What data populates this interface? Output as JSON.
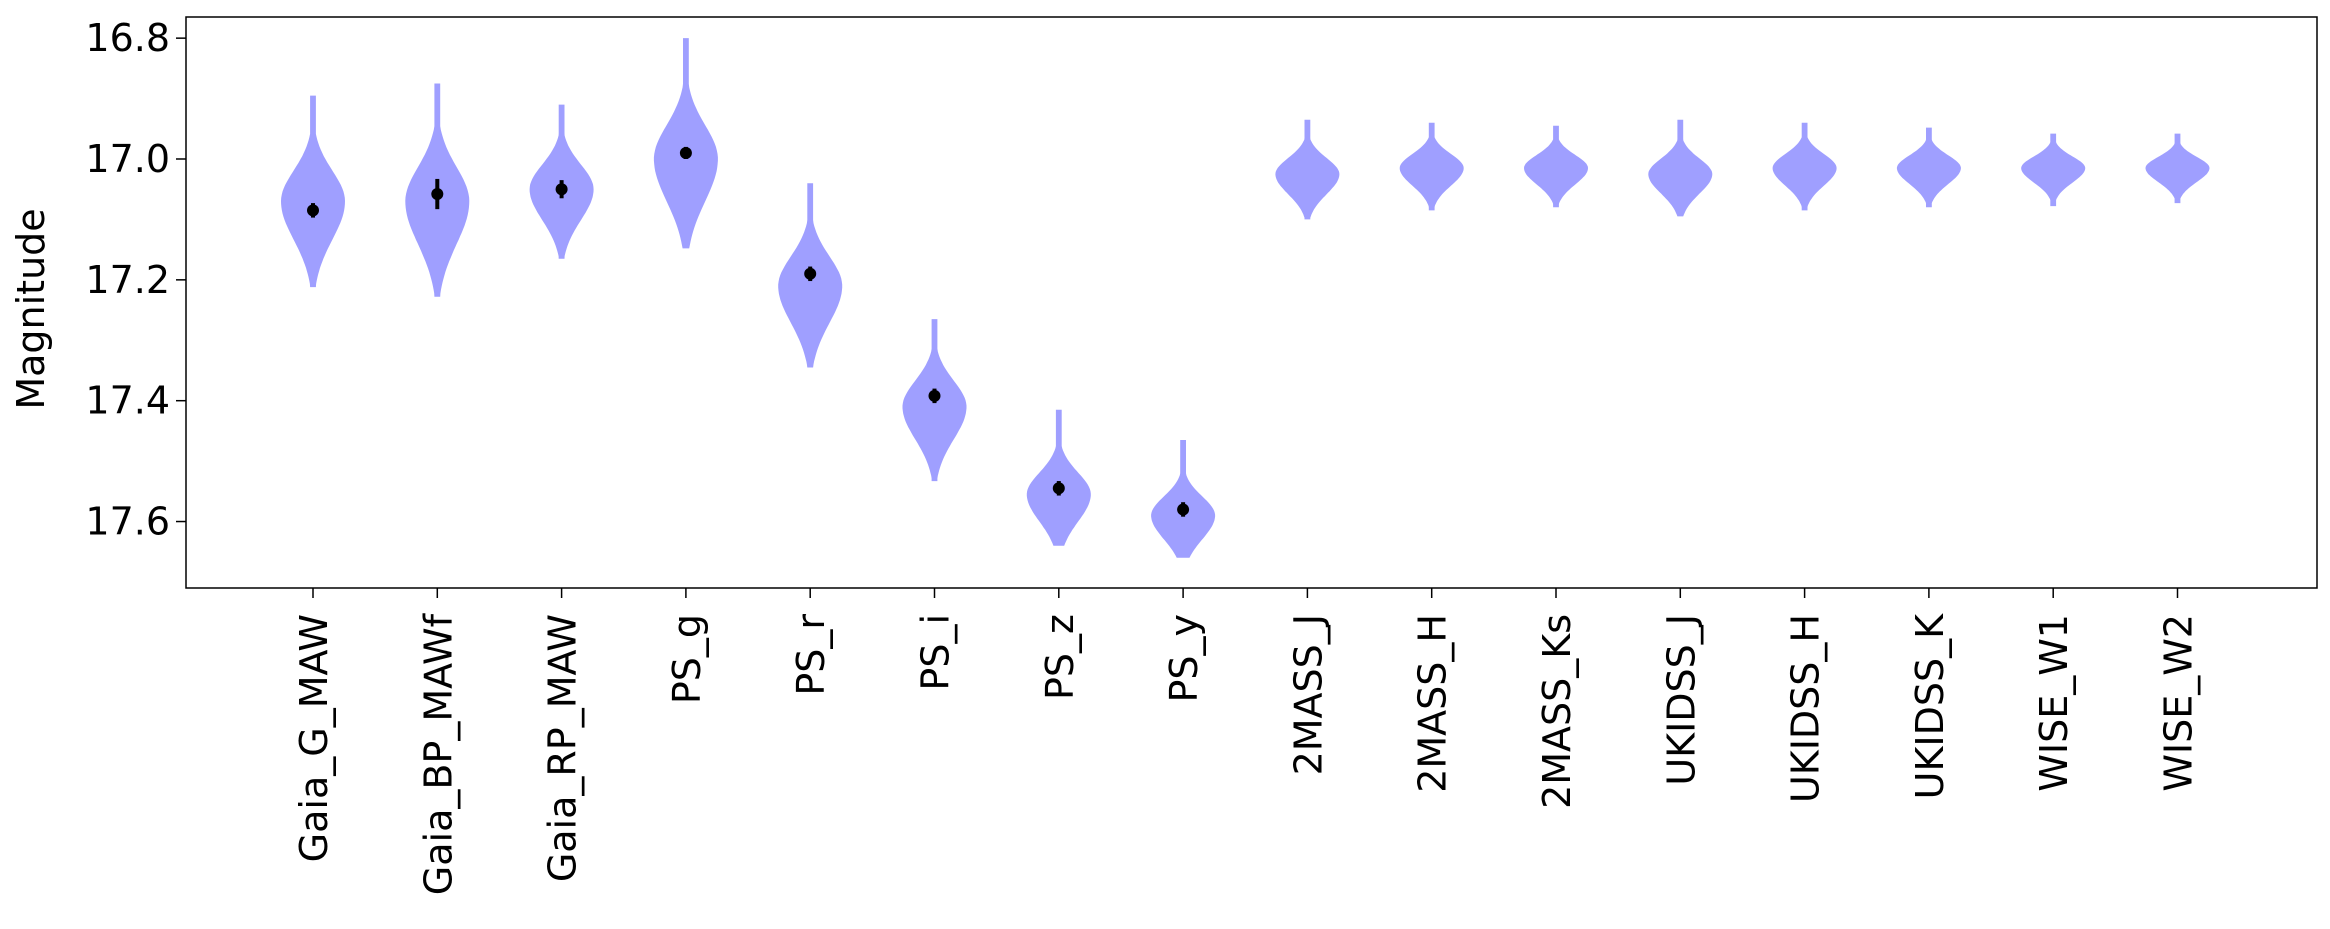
{
  "chart_data": {
    "type": "violin",
    "ylabel": "Magnitude",
    "xlabel": "",
    "title": "",
    "y_inverted": true,
    "ylim": [
      17.71,
      16.765
    ],
    "yticks": [
      16.8,
      17.0,
      17.2,
      17.4,
      17.6
    ],
    "ytick_labels": [
      "16.8",
      "17.0",
      "17.2",
      "17.4",
      "17.6"
    ],
    "grid": false,
    "violin_color": "#7f7fff",
    "categories": [
      "Gaia_G_MAW",
      "Gaia_BP_MAWf",
      "Gaia_RP_MAW",
      "PS_g",
      "PS_r",
      "PS_i",
      "PS_z",
      "PS_y",
      "2MASS_J",
      "2MASS_H",
      "2MASS_Ks",
      "UKIDSS_J",
      "UKIDSS_H",
      "UKIDSS_K",
      "WISE_W1",
      "WISE_W2"
    ],
    "violins": [
      {
        "band": "Gaia_G_MAW",
        "min": 16.895,
        "max": 17.212,
        "mode": 17.07,
        "halfwidth": 0.16
      },
      {
        "band": "Gaia_BP_MAWf",
        "min": 16.875,
        "max": 17.228,
        "mode": 17.07,
        "halfwidth": 0.16
      },
      {
        "band": "Gaia_RP_MAW",
        "min": 16.91,
        "max": 17.165,
        "mode": 17.05,
        "halfwidth": 0.16
      },
      {
        "band": "PS_g",
        "min": 16.8,
        "max": 17.148,
        "mode": 17.0,
        "halfwidth": 0.16
      },
      {
        "band": "PS_r",
        "min": 17.04,
        "max": 17.345,
        "mode": 17.21,
        "halfwidth": 0.16
      },
      {
        "band": "PS_i",
        "min": 17.265,
        "max": 17.533,
        "mode": 17.41,
        "halfwidth": 0.16
      },
      {
        "band": "PS_z",
        "min": 17.415,
        "max": 17.64,
        "mode": 17.555,
        "halfwidth": 0.16
      },
      {
        "band": "PS_y",
        "min": 17.465,
        "max": 17.66,
        "mode": 17.59,
        "halfwidth": 0.16
      },
      {
        "band": "2MASS_J",
        "min": 16.935,
        "max": 17.1,
        "mode": 17.025,
        "halfwidth": 0.16
      },
      {
        "band": "2MASS_H",
        "min": 16.94,
        "max": 17.085,
        "mode": 17.015,
        "halfwidth": 0.16
      },
      {
        "band": "2MASS_Ks",
        "min": 16.945,
        "max": 17.08,
        "mode": 17.015,
        "halfwidth": 0.16
      },
      {
        "band": "UKIDSS_J",
        "min": 16.935,
        "max": 17.095,
        "mode": 17.025,
        "halfwidth": 0.16
      },
      {
        "band": "UKIDSS_H",
        "min": 16.94,
        "max": 17.085,
        "mode": 17.015,
        "halfwidth": 0.16
      },
      {
        "band": "UKIDSS_K",
        "min": 16.948,
        "max": 17.08,
        "mode": 17.015,
        "halfwidth": 0.16
      },
      {
        "band": "WISE_W1",
        "min": 16.958,
        "max": 17.078,
        "mode": 17.015,
        "halfwidth": 0.16
      },
      {
        "band": "WISE_W2",
        "min": 16.958,
        "max": 17.073,
        "mode": 17.015,
        "halfwidth": 0.16
      }
    ],
    "observations": [
      {
        "band": "Gaia_G_MAW",
        "value": 17.085,
        "error": 0.012
      },
      {
        "band": "Gaia_BP_MAWf",
        "value": 17.058,
        "error": 0.025
      },
      {
        "band": "Gaia_RP_MAW",
        "value": 17.05,
        "error": 0.015
      },
      {
        "band": "PS_g",
        "value": 16.99,
        "error": 0.01
      },
      {
        "band": "PS_r",
        "value": 17.19,
        "error": 0.012
      },
      {
        "band": "PS_i",
        "value": 17.392,
        "error": 0.012
      },
      {
        "band": "PS_z",
        "value": 17.545,
        "error": 0.012
      },
      {
        "band": "PS_y",
        "value": 17.58,
        "error": 0.012
      }
    ]
  }
}
